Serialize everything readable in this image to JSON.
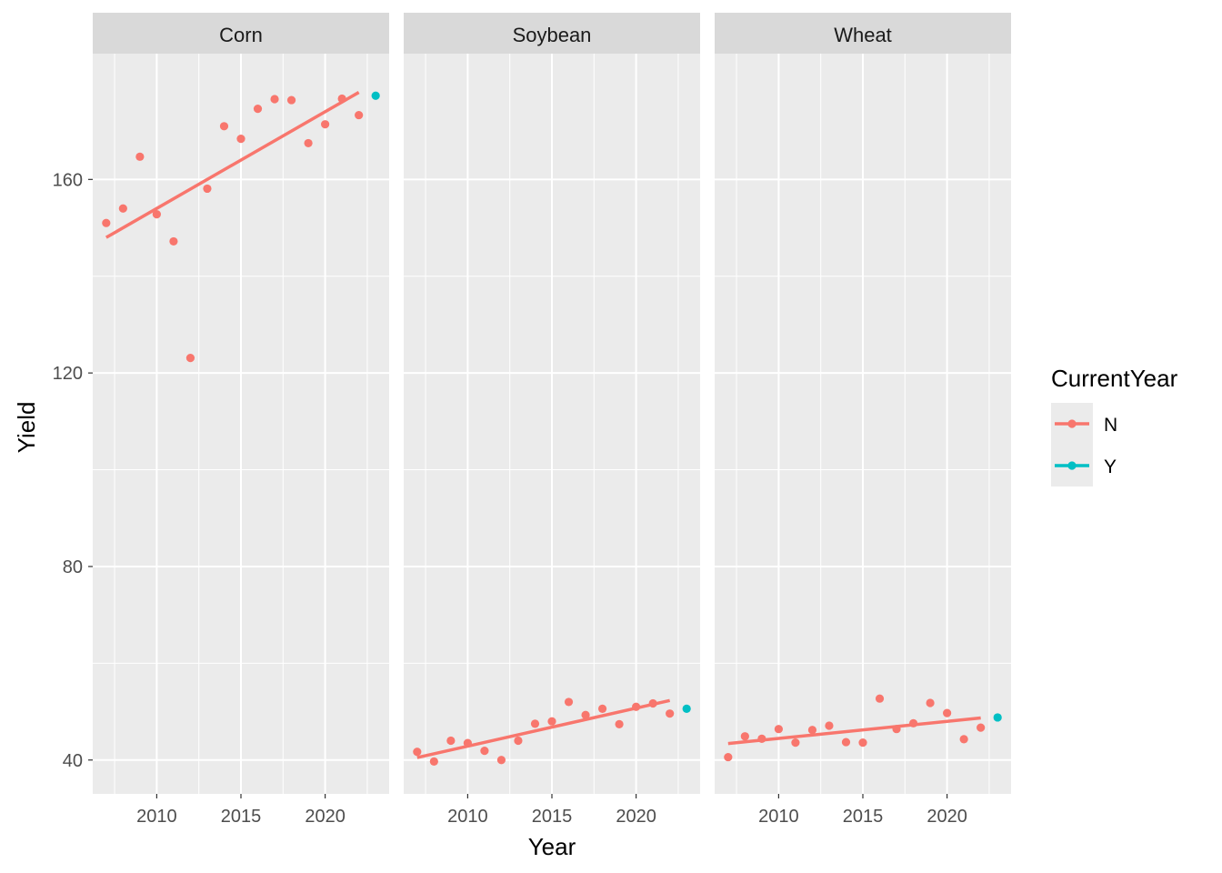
{
  "chart_data": {
    "type": "scatter",
    "xlabel": "Year",
    "ylabel": "Yield",
    "xlim": [
      2006.2,
      2023.8
    ],
    "ylim": [
      33,
      186
    ],
    "x_ticks": [
      2010,
      2015,
      2020
    ],
    "x_tick_labels": [
      "2010",
      "2015",
      "2020"
    ],
    "y_ticks": [
      40,
      80,
      120,
      160
    ],
    "y_tick_labels": [
      "40",
      "80",
      "120",
      "160"
    ],
    "grid": true,
    "legend": {
      "title": "CurrentYear",
      "position": "right",
      "entries": [
        {
          "label": "N",
          "color": "#F8766D"
        },
        {
          "label": "Y",
          "color": "#00BFC4"
        }
      ]
    },
    "colors": {
      "N": "#F8766D",
      "Y": "#00BFC4"
    },
    "panels": [
      {
        "facet": "Corn",
        "points": [
          {
            "x": 2007,
            "y": 151,
            "current": "N"
          },
          {
            "x": 2008,
            "y": 154,
            "current": "N"
          },
          {
            "x": 2009,
            "y": 164.7,
            "current": "N"
          },
          {
            "x": 2010,
            "y": 152.8,
            "current": "N"
          },
          {
            "x": 2011,
            "y": 147.2,
            "current": "N"
          },
          {
            "x": 2012,
            "y": 123.1,
            "current": "N"
          },
          {
            "x": 2013,
            "y": 158.1,
            "current": "N"
          },
          {
            "x": 2014,
            "y": 171,
            "current": "N"
          },
          {
            "x": 2015,
            "y": 168.4,
            "current": "N"
          },
          {
            "x": 2016,
            "y": 174.6,
            "current": "N"
          },
          {
            "x": 2017,
            "y": 176.6,
            "current": "N"
          },
          {
            "x": 2018,
            "y": 176.4,
            "current": "N"
          },
          {
            "x": 2019,
            "y": 167.5,
            "current": "N"
          },
          {
            "x": 2020,
            "y": 171.4,
            "current": "N"
          },
          {
            "x": 2021,
            "y": 176.7,
            "current": "N"
          },
          {
            "x": 2022,
            "y": 173.3,
            "current": "N"
          },
          {
            "x": 2023,
            "y": 177.3,
            "current": "Y"
          }
        ],
        "trend": {
          "x": [
            2007,
            2022
          ],
          "y": [
            148,
            178
          ]
        }
      },
      {
        "facet": "Soybean",
        "points": [
          {
            "x": 2007,
            "y": 41.7,
            "current": "N"
          },
          {
            "x": 2008,
            "y": 39.7,
            "current": "N"
          },
          {
            "x": 2009,
            "y": 44,
            "current": "N"
          },
          {
            "x": 2010,
            "y": 43.5,
            "current": "N"
          },
          {
            "x": 2011,
            "y": 41.9,
            "current": "N"
          },
          {
            "x": 2012,
            "y": 40,
            "current": "N"
          },
          {
            "x": 2013,
            "y": 44,
            "current": "N"
          },
          {
            "x": 2014,
            "y": 47.5,
            "current": "N"
          },
          {
            "x": 2015,
            "y": 48,
            "current": "N"
          },
          {
            "x": 2016,
            "y": 52,
            "current": "N"
          },
          {
            "x": 2017,
            "y": 49.3,
            "current": "N"
          },
          {
            "x": 2018,
            "y": 50.6,
            "current": "N"
          },
          {
            "x": 2019,
            "y": 47.4,
            "current": "N"
          },
          {
            "x": 2020,
            "y": 51,
            "current": "N"
          },
          {
            "x": 2021,
            "y": 51.7,
            "current": "N"
          },
          {
            "x": 2022,
            "y": 49.6,
            "current": "N"
          },
          {
            "x": 2023,
            "y": 50.6,
            "current": "Y"
          }
        ],
        "trend": {
          "x": [
            2007,
            2022
          ],
          "y": [
            40.5,
            52.3
          ]
        }
      },
      {
        "facet": "Wheat",
        "points": [
          {
            "x": 2007,
            "y": 40.6,
            "current": "N"
          },
          {
            "x": 2008,
            "y": 44.9,
            "current": "N"
          },
          {
            "x": 2009,
            "y": 44.4,
            "current": "N"
          },
          {
            "x": 2010,
            "y": 46.4,
            "current": "N"
          },
          {
            "x": 2011,
            "y": 43.6,
            "current": "N"
          },
          {
            "x": 2012,
            "y": 46.2,
            "current": "N"
          },
          {
            "x": 2013,
            "y": 47.1,
            "current": "N"
          },
          {
            "x": 2014,
            "y": 43.7,
            "current": "N"
          },
          {
            "x": 2015,
            "y": 43.6,
            "current": "N"
          },
          {
            "x": 2016,
            "y": 52.7,
            "current": "N"
          },
          {
            "x": 2017,
            "y": 46.4,
            "current": "N"
          },
          {
            "x": 2018,
            "y": 47.6,
            "current": "N"
          },
          {
            "x": 2019,
            "y": 51.8,
            "current": "N"
          },
          {
            "x": 2020,
            "y": 49.7,
            "current": "N"
          },
          {
            "x": 2021,
            "y": 44.3,
            "current": "N"
          },
          {
            "x": 2022,
            "y": 46.7,
            "current": "N"
          },
          {
            "x": 2023,
            "y": 48.8,
            "current": "Y"
          }
        ],
        "trend": {
          "x": [
            2007,
            2022
          ],
          "y": [
            43.4,
            48.7
          ]
        }
      }
    ]
  }
}
